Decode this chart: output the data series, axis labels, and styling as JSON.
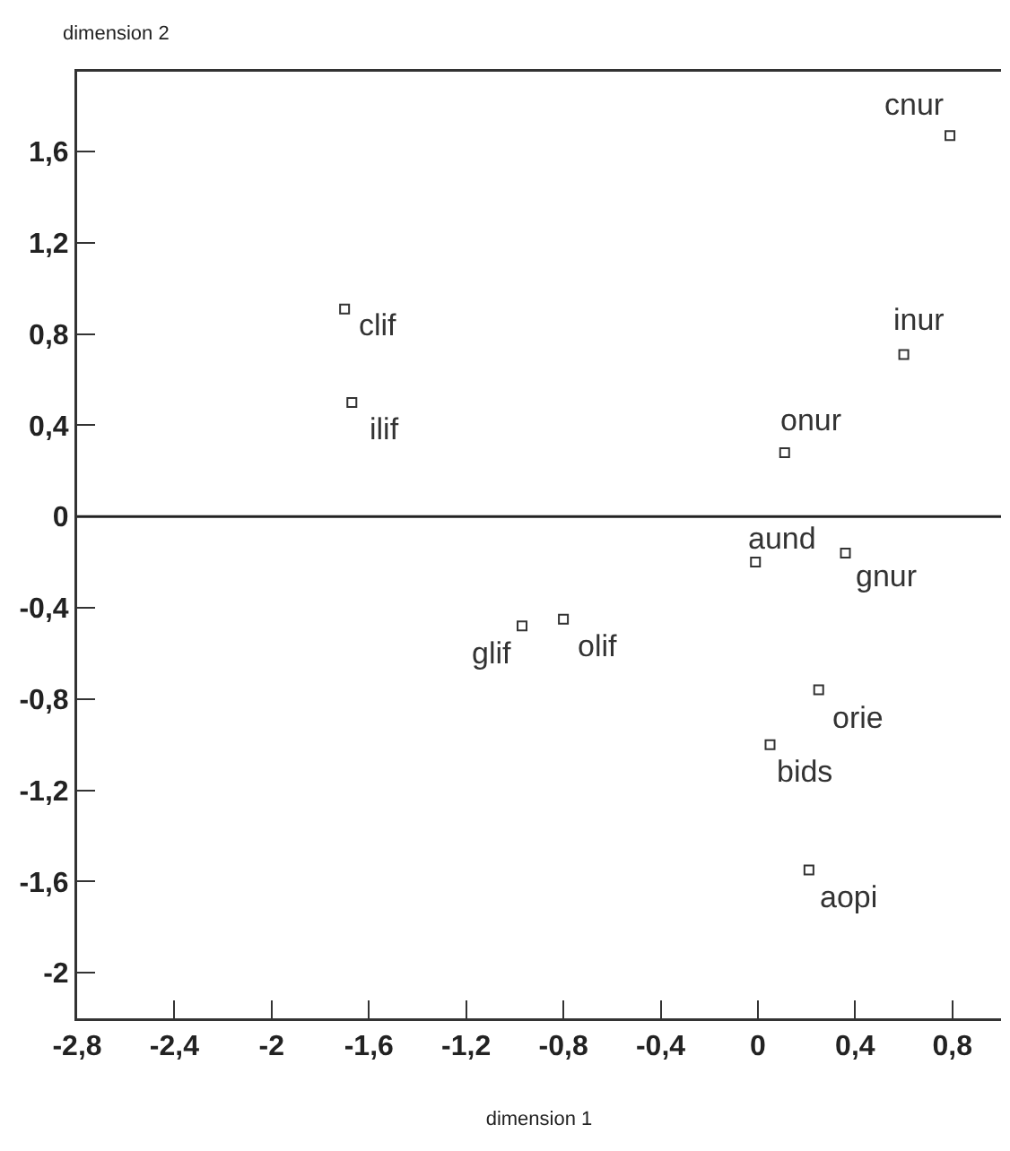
{
  "chart_data": {
    "type": "scatter",
    "xlabel": "dimension 1",
    "ylabel": "dimension 2",
    "x": [
      0.79,
      0.6,
      -1.7,
      -1.67,
      0.11,
      -0.01,
      0.36,
      -0.97,
      -0.8,
      0.25,
      0.05,
      0.21
    ],
    "values": [
      1.67,
      0.71,
      0.91,
      0.5,
      0.28,
      -0.2,
      -0.16,
      -0.48,
      -0.45,
      -0.76,
      -1.0,
      -1.55
    ],
    "color": "#333333",
    "marker": "square",
    "grid": false,
    "xlim": [
      -2.8,
      1.0
    ],
    "xticks": [
      {
        "value": -2.8,
        "label": "-2,8"
      },
      {
        "value": -2.4,
        "label": "-2,4"
      },
      {
        "value": -2,
        "label": "-2"
      },
      {
        "value": -1.6,
        "label": "-1,6"
      },
      {
        "value": -1.2,
        "label": "-1,2"
      },
      {
        "value": -0.8,
        "label": "-0,8"
      },
      {
        "value": -0.4,
        "label": "-0,4"
      },
      {
        "value": 0,
        "label": "0"
      },
      {
        "value": 0.4,
        "label": "0,4"
      },
      {
        "value": 0.8,
        "label": "0,8"
      }
    ],
    "ylim": [
      -2.2,
      1.95
    ],
    "yticks": [
      {
        "value": -2,
        "label": "-2"
      },
      {
        "value": -1.6,
        "label": "-1,6"
      },
      {
        "value": -1.2,
        "label": "-1,2"
      },
      {
        "value": -0.8,
        "label": "-0,8"
      },
      {
        "value": -0.4,
        "label": "-0,4"
      },
      {
        "value": 0,
        "label": "0"
      },
      {
        "value": 0.4,
        "label": "0,4"
      },
      {
        "value": 0.8,
        "label": "0,8"
      },
      {
        "value": 1.2,
        "label": "1,2"
      },
      {
        "value": 1.6,
        "label": "1,6"
      }
    ],
    "ref_lines": [
      {
        "axis": "y",
        "value": 0
      }
    ],
    "annotations": [
      {
        "text": "cnur",
        "x": 0.79,
        "y": 1.67
      },
      {
        "text": "inur",
        "x": 0.6,
        "y": 0.71
      },
      {
        "text": "clif",
        "x": -1.7,
        "y": 0.91
      },
      {
        "text": "ilif",
        "x": -1.67,
        "y": 0.5
      },
      {
        "text": "onur",
        "x": 0.11,
        "y": 0.28
      },
      {
        "text": "aund",
        "x": -0.01,
        "y": -0.2
      },
      {
        "text": "gnur",
        "x": 0.36,
        "y": -0.16
      },
      {
        "text": "glif",
        "x": -0.97,
        "y": -0.48
      },
      {
        "text": "olif",
        "x": -0.8,
        "y": -0.45
      },
      {
        "text": "orie",
        "x": 0.25,
        "y": -0.76
      },
      {
        "text": "bids",
        "x": 0.05,
        "y": -1.0
      },
      {
        "text": "aopi",
        "x": 0.21,
        "y": -1.55
      }
    ]
  }
}
